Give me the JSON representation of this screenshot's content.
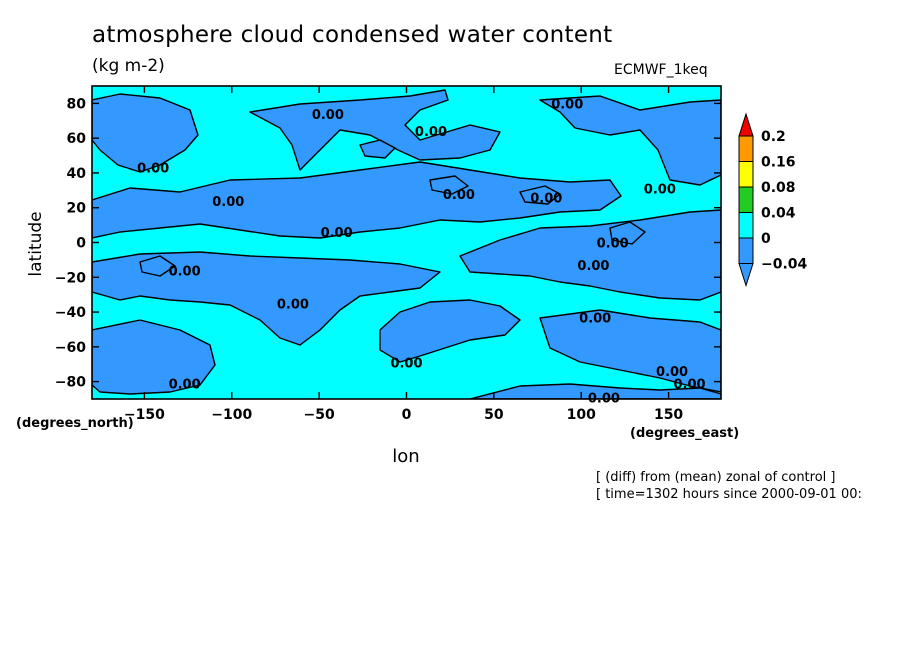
{
  "chart_data": {
    "type": "heatmap",
    "title": "atmosphere cloud condensed water content",
    "units": "(kg m-2)",
    "model": "ECMWF_1keq",
    "xlabel": "lon",
    "ylabel": "latitude",
    "x_units": "(degrees_east)",
    "y_units": "(degrees_north)",
    "xlim": [
      -180,
      180
    ],
    "ylim": [
      -90,
      90
    ],
    "x_ticks": [
      -150,
      -100,
      -50,
      0,
      50,
      100,
      150
    ],
    "y_ticks": [
      80,
      60,
      40,
      20,
      0,
      -20,
      -40,
      -60,
      -80
    ],
    "notes": [
      "[ (diff) from (mean) zonal of control ]",
      "[ time=1302 hours since 2000-09-01 00:"
    ],
    "colorbar": {
      "levels": [
        "0.2",
        "0.16",
        "0.08",
        "0.04",
        "0",
        "-0.04"
      ],
      "colors": [
        "#ee0000",
        "#ff9900",
        "#ffff00",
        "#22cc22",
        "#00ffff",
        "#3399ff"
      ]
    },
    "contour_labels": [
      {
        "text": "0.00",
        "lon": -45,
        "lat": 74
      },
      {
        "text": "0.00",
        "lon": 14,
        "lat": 64
      },
      {
        "text": "0.00",
        "lon": 92,
        "lat": 80
      },
      {
        "text": "0.00",
        "lon": -145,
        "lat": 43
      },
      {
        "text": "0.00",
        "lon": -102,
        "lat": 24
      },
      {
        "text": "0.00",
        "lon": 30,
        "lat": 28
      },
      {
        "text": "0.00",
        "lon": 80,
        "lat": 26
      },
      {
        "text": "0.00",
        "lon": 145,
        "lat": 31
      },
      {
        "text": "0.00",
        "lon": -40,
        "lat": 6
      },
      {
        "text": "0.00",
        "lon": 118,
        "lat": 0
      },
      {
        "text": "0.00",
        "lon": -127,
        "lat": -16
      },
      {
        "text": "0.00",
        "lon": 107,
        "lat": -13
      },
      {
        "text": "0.00",
        "lon": -65,
        "lat": -35
      },
      {
        "text": "0.00",
        "lon": 108,
        "lat": -43
      },
      {
        "text": "0.00",
        "lon": 0,
        "lat": -69
      },
      {
        "text": "0.00",
        "lon": 152,
        "lat": -74
      },
      {
        "text": "0.00",
        "lon": -127,
        "lat": -81
      },
      {
        "text": "0.00",
        "lon": 162,
        "lat": -81
      },
      {
        "text": "0.00",
        "lon": 113,
        "lat": -89
      }
    ]
  }
}
